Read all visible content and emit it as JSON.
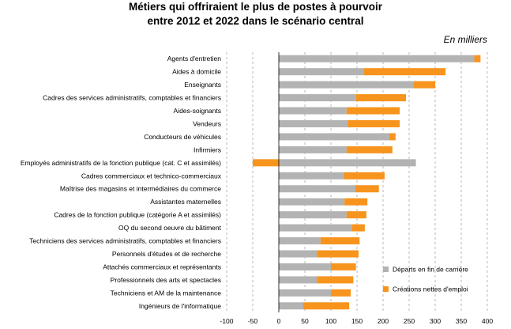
{
  "title_line1": "Métiers qui offriraient le plus de postes à pourvoir",
  "title_line2": "entre 2012 et 2022 dans le scénario central",
  "unit_label": "En milliers",
  "chart_data": {
    "type": "bar",
    "orientation": "horizontal",
    "stacked": true,
    "categories": [
      "Agents d'entretien",
      "Aides à domicile",
      "Enseignants",
      "Cadres des services administratifs, comptables et financiers",
      "Aides-soignants",
      "Vendeurs",
      "Conducteurs de véhicules",
      "Infirmiers",
      "Employés administratifs de la fonction publique (cat. C et assimilés)",
      "Cadres commerciaux et technico-commerciaux",
      "Maîtrise des magasins et intermédiaires du commerce",
      "Assistantes maternelles",
      "Cadres de la fonction publique (catégorie A et assimilés)",
      "OQ du second oeuvre du bâtiment",
      "Techniciens des services administratifs, comptables et financiers",
      "Personnels d'études et de recherche",
      "Attachés commerciaux et représentants",
      "Professionnels des arts et spectacles",
      "Techniciens et AM de la maintenance",
      "Ingénieurs de l'informatique"
    ],
    "series": [
      {
        "name": "Départs en fin de carrière",
        "color": "#b3b3b3",
        "values": [
          375,
          163,
          258,
          148,
          130,
          132,
          212,
          130,
          263,
          125,
          147,
          126,
          130,
          140,
          80,
          73,
          100,
          73,
          100,
          47
        ]
      },
      {
        "name": "Créations nettes d'emploi",
        "color": "#f7941d",
        "values": [
          12,
          157,
          42,
          96,
          102,
          100,
          12,
          88,
          -50,
          78,
          45,
          44,
          38,
          25,
          75,
          80,
          48,
          70,
          38,
          88
        ]
      }
    ],
    "xlim": [
      -100,
      400
    ],
    "xticks": [
      -100,
      -50,
      0,
      50,
      100,
      150,
      200,
      250,
      300,
      350,
      400
    ],
    "grid": true,
    "legend_position": "bottom-right"
  }
}
